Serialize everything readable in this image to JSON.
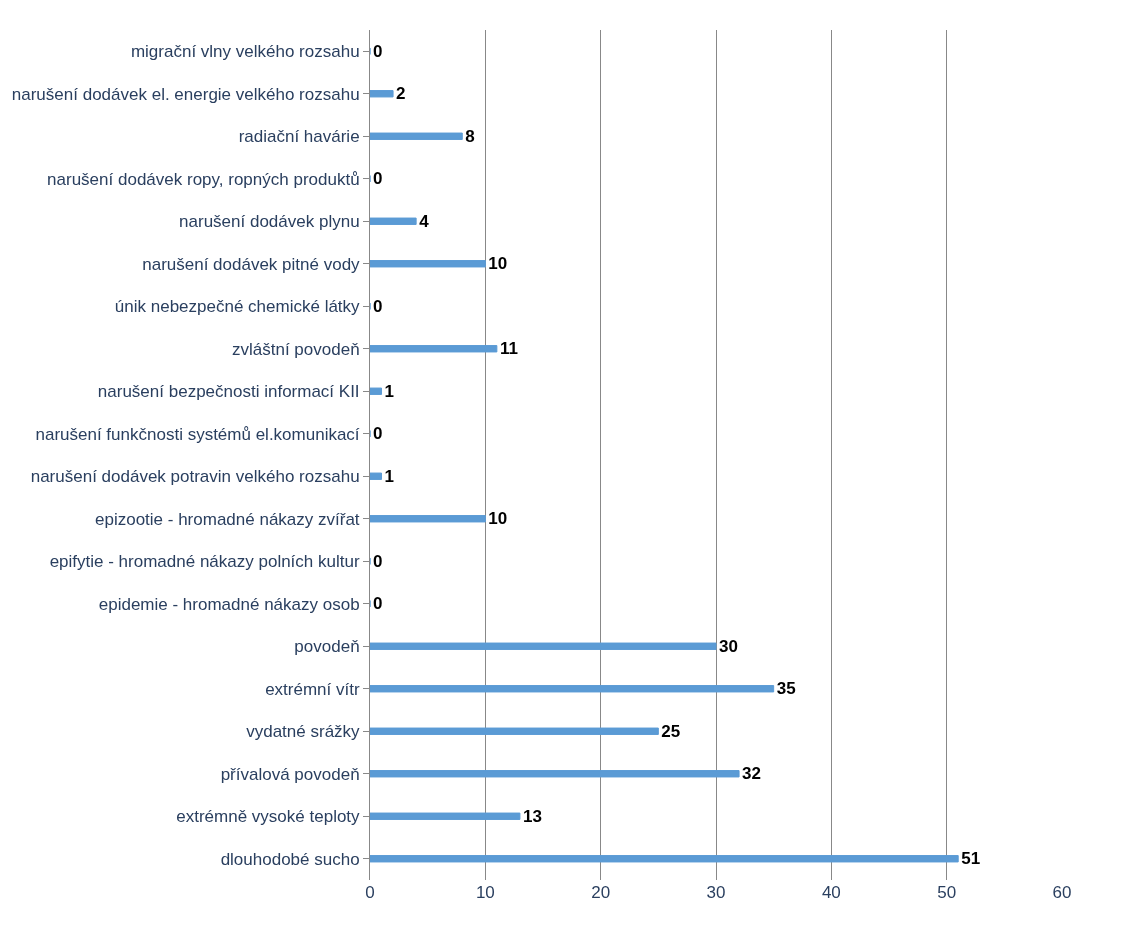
{
  "chart_data": {
    "type": "bar",
    "orientation": "horizontal",
    "categories": [
      "migrační vlny velkého rozsahu",
      "narušení dodávek el. energie velkého rozsahu",
      "radiační havárie",
      "narušení dodávek ropy, ropných produktů",
      "narušení dodávek plynu",
      "narušení dodávek pitné vody",
      "únik nebezpečné chemické látky",
      "zvláštní povodeň",
      "narušení bezpečnosti informací KII",
      "narušení funkčnosti systémů el.komunikací",
      "narušení dodávek potravin velkého rozsahu",
      "epizootie - hromadné nákazy zvířat",
      "epifytie - hromadné nákazy polních kultur",
      "epidemie - hromadné nákazy osob",
      "povodeň",
      "extrémní vítr",
      "vydatné srážky",
      "přívalová povodeň",
      "extrémně vysoké teploty",
      "dlouhodobé sucho"
    ],
    "values": [
      0,
      2,
      8,
      0,
      4,
      10,
      0,
      11,
      1,
      0,
      1,
      10,
      0,
      0,
      30,
      35,
      25,
      32,
      13,
      51
    ],
    "color": "#5b9bd5",
    "data_labels": true,
    "xlim": [
      0,
      60
    ],
    "xticks": [
      0,
      10,
      20,
      30,
      40,
      50,
      60
    ],
    "grid": "x"
  }
}
